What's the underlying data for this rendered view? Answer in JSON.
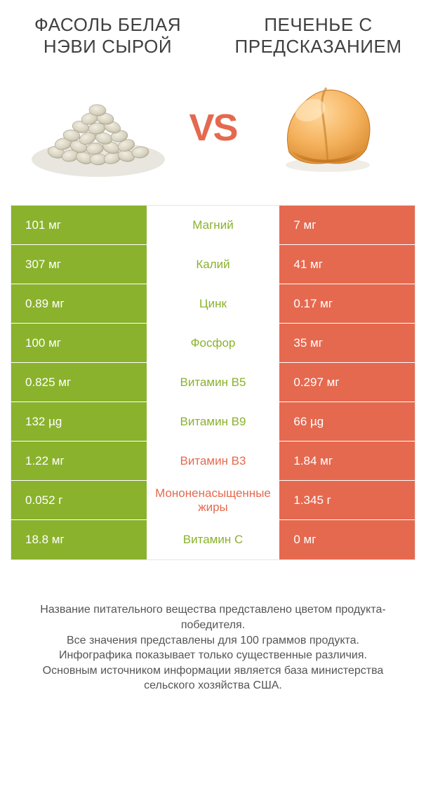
{
  "colors": {
    "left_bar": "#8ab22d",
    "right_bar": "#e5694f",
    "mid_left_text": "#8ab22d",
    "mid_right_text": "#e5694f",
    "vs_text": "#e5694f",
    "title_text": "#404040",
    "foot_text": "#555555",
    "row_border": "#ffffff",
    "table_border": "#e5e5e5"
  },
  "titles": {
    "left": "ФАСОЛЬ БЕЛАЯ НЭВИ СЫРОЙ",
    "right": "ПЕЧЕНЬЕ С ПРЕДСКАЗАНИЕМ"
  },
  "vs_label": "VS",
  "rows": [
    {
      "left": "101 мг",
      "mid": "Магний",
      "right": "7 мг",
      "winner": "left"
    },
    {
      "left": "307 мг",
      "mid": "Калий",
      "right": "41 мг",
      "winner": "left"
    },
    {
      "left": "0.89 мг",
      "mid": "Цинк",
      "right": "0.17 мг",
      "winner": "left"
    },
    {
      "left": "100 мг",
      "mid": "Фосфор",
      "right": "35 мг",
      "winner": "left"
    },
    {
      "left": "0.825 мг",
      "mid": "Витамин B5",
      "right": "0.297 мг",
      "winner": "left"
    },
    {
      "left": "132 µg",
      "mid": "Витамин B9",
      "right": "66 µg",
      "winner": "left"
    },
    {
      "left": "1.22 мг",
      "mid": "Витамин B3",
      "right": "1.84 мг",
      "winner": "right"
    },
    {
      "left": "0.052 г",
      "mid": "Мононенасыщенные жиры",
      "right": "1.345 г",
      "winner": "right"
    },
    {
      "left": "18.8 мг",
      "mid": "Витамин C",
      "right": "0 мг",
      "winner": "left"
    }
  ],
  "footnote_lines": [
    "Название питательного вещества представлено цветом продукта-победителя.",
    "Все значения представлены для 100 граммов продукта.",
    "Инфографика показывает только существенные различия.",
    "Основным источником информации является база министерства сельского хозяйства США."
  ]
}
